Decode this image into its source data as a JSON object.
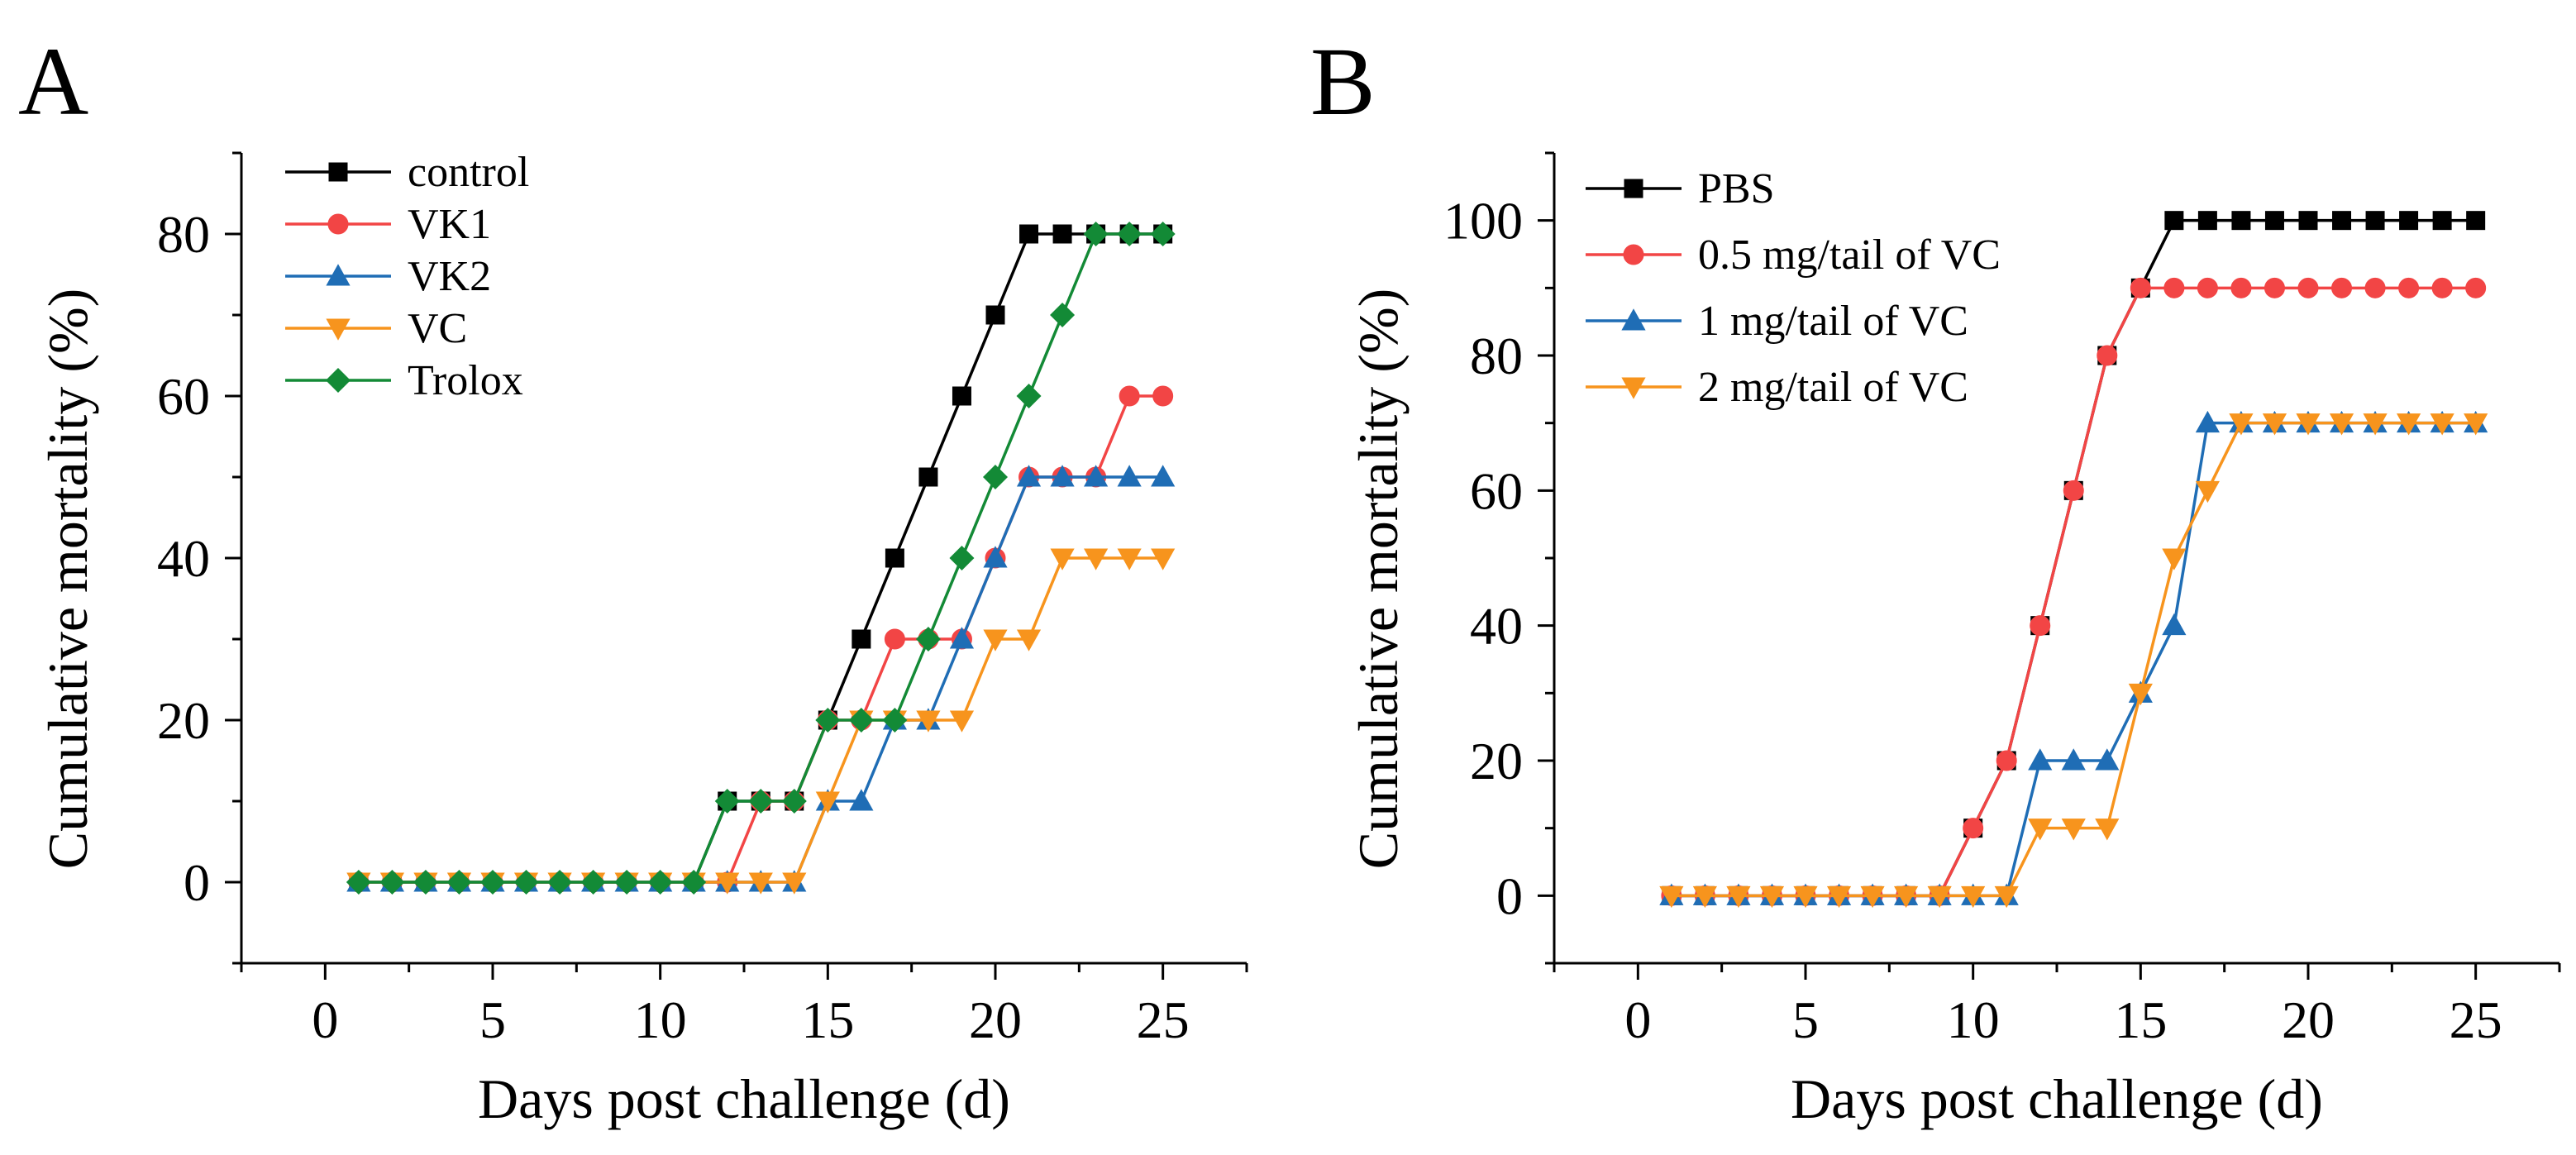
{
  "chart_data": [
    {
      "panel_label": "A",
      "type": "line",
      "xlabel": "Days post challenge (d)",
      "ylabel": "Cumulative mortality (%)",
      "xlim": [
        -2.5,
        27.5
      ],
      "ylim": [
        -10,
        90
      ],
      "xticks": [
        0,
        5,
        10,
        15,
        20,
        25
      ],
      "yticks": [
        0,
        20,
        40,
        60,
        80
      ],
      "xtick_labels": [
        "0",
        "5",
        "10",
        "15",
        "20",
        "25"
      ],
      "ytick_labels": [
        "0",
        "20",
        "40",
        "60",
        "80"
      ],
      "legend_position": "top-left",
      "x": [
        1,
        2,
        3,
        4,
        5,
        6,
        7,
        8,
        9,
        10,
        11,
        12,
        13,
        14,
        15,
        16,
        17,
        18,
        19,
        20,
        21,
        22,
        23,
        24,
        25
      ],
      "series": [
        {
          "name": "control",
          "color": "#000000",
          "marker": "square",
          "values": [
            0,
            0,
            0,
            0,
            0,
            0,
            0,
            0,
            0,
            0,
            0,
            10,
            10,
            10,
            20,
            30,
            40,
            50,
            60,
            70,
            80,
            80,
            80,
            80,
            80
          ]
        },
        {
          "name": "VK1",
          "color": "#F24545",
          "marker": "circle",
          "values": [
            0,
            0,
            0,
            0,
            0,
            0,
            0,
            0,
            0,
            0,
            0,
            0,
            10,
            10,
            20,
            20,
            30,
            30,
            30,
            40,
            50,
            50,
            50,
            60,
            60
          ]
        },
        {
          "name": "VK2",
          "color": "#1F6DB5",
          "marker": "triangle-up",
          "values": [
            0,
            0,
            0,
            0,
            0,
            0,
            0,
            0,
            0,
            0,
            0,
            0,
            0,
            0,
            10,
            10,
            20,
            20,
            30,
            40,
            50,
            50,
            50,
            50,
            50
          ]
        },
        {
          "name": "VC",
          "color": "#F7941D",
          "marker": "triangle-down",
          "values": [
            0,
            0,
            0,
            0,
            0,
            0,
            0,
            0,
            0,
            0,
            0,
            0,
            0,
            0,
            10,
            20,
            20,
            20,
            20,
            30,
            30,
            40,
            40,
            40,
            40
          ]
        },
        {
          "name": "Trolox",
          "color": "#138A36",
          "marker": "diamond",
          "values": [
            0,
            0,
            0,
            0,
            0,
            0,
            0,
            0,
            0,
            0,
            0,
            10,
            10,
            10,
            20,
            20,
            20,
            30,
            40,
            50,
            60,
            70,
            80,
            80,
            80
          ]
        }
      ]
    },
    {
      "panel_label": "B",
      "type": "line",
      "xlabel": "Days post challenge (d)",
      "ylabel": "Cumulative mortality (%)",
      "xlim": [
        -2.5,
        27.5
      ],
      "ylim": [
        -10,
        110
      ],
      "xticks": [
        0,
        5,
        10,
        15,
        20,
        25
      ],
      "yticks": [
        0,
        20,
        40,
        60,
        80,
        100
      ],
      "xtick_labels": [
        "0",
        "5",
        "10",
        "15",
        "20",
        "25"
      ],
      "ytick_labels": [
        "0",
        "20",
        "40",
        "60",
        "80",
        "100"
      ],
      "legend_position": "top-left",
      "x": [
        1,
        2,
        3,
        4,
        5,
        6,
        7,
        8,
        9,
        10,
        11,
        12,
        13,
        14,
        15,
        16,
        17,
        18,
        19,
        20,
        21,
        22,
        23,
        24,
        25
      ],
      "series": [
        {
          "name": "PBS",
          "color": "#000000",
          "marker": "square",
          "values": [
            0,
            0,
            0,
            0,
            0,
            0,
            0,
            0,
            0,
            10,
            20,
            40,
            60,
            80,
            90,
            100,
            100,
            100,
            100,
            100,
            100,
            100,
            100,
            100,
            100
          ]
        },
        {
          "name": "0.5 mg/tail of VC",
          "color": "#F24545",
          "marker": "circle",
          "values": [
            0,
            0,
            0,
            0,
            0,
            0,
            0,
            0,
            0,
            10,
            20,
            40,
            60,
            80,
            90,
            90,
            90,
            90,
            90,
            90,
            90,
            90,
            90,
            90,
            90
          ]
        },
        {
          "name": "1 mg/tail of VC",
          "color": "#1F6DB5",
          "marker": "triangle-up",
          "values": [
            0,
            0,
            0,
            0,
            0,
            0,
            0,
            0,
            0,
            0,
            0,
            20,
            20,
            20,
            30,
            40,
            70,
            70,
            70,
            70,
            70,
            70,
            70,
            70,
            70
          ]
        },
        {
          "name": "2 mg/tail of VC",
          "color": "#F7941D",
          "marker": "triangle-down",
          "values": [
            0,
            0,
            0,
            0,
            0,
            0,
            0,
            0,
            0,
            0,
            0,
            10,
            10,
            10,
            30,
            50,
            60,
            70,
            70,
            70,
            70,
            70,
            70,
            70,
            70
          ]
        }
      ]
    }
  ]
}
